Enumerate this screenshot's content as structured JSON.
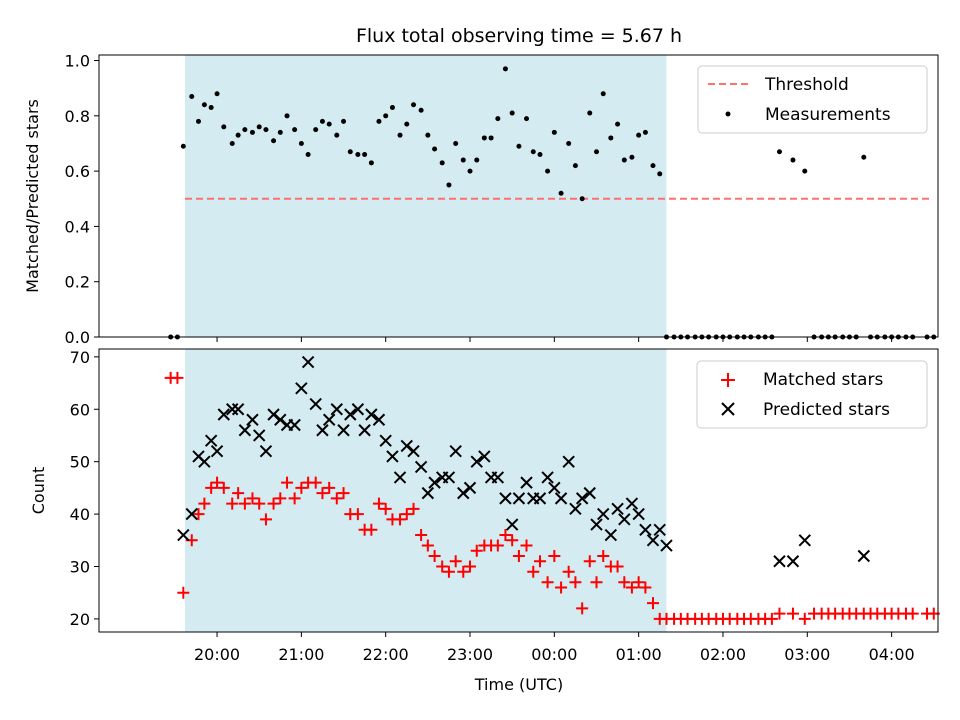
{
  "title": "Flux total observing time = 5.67 h",
  "colors": {
    "shade": "#d4ebf1",
    "threshold": "#ff7070",
    "matched": "#ff0000",
    "predicted": "#000000",
    "measurements": "#000000"
  },
  "chart_data": [
    {
      "type": "scatter",
      "ylabel": "Matched/Predicted stars",
      "xlim_hours": [
        18.6,
        28.55
      ],
      "ylim": [
        0,
        1.02
      ],
      "yticks": [
        "0.0",
        "0.2",
        "0.4",
        "0.6",
        "0.8",
        "1.0"
      ],
      "ytick_values": [
        0,
        0.2,
        0.4,
        0.6,
        0.8,
        1.0
      ],
      "shaded_span_hours": [
        19.62,
        25.33
      ],
      "threshold": {
        "y": 0.5,
        "x_start_hours": 19.62,
        "x_end_hours": 28.45
      },
      "legend": [
        "Threshold",
        "Measurements"
      ],
      "legend_position": "upper right",
      "series": [
        {
          "name": "Measurements",
          "x_hours": [
            19.45,
            19.53,
            19.6,
            19.7,
            19.78,
            19.85,
            19.93,
            20.0,
            20.08,
            20.18,
            20.25,
            20.33,
            20.42,
            20.5,
            20.58,
            20.67,
            20.75,
            20.83,
            20.92,
            21.0,
            21.08,
            21.17,
            21.25,
            21.33,
            21.42,
            21.5,
            21.58,
            21.67,
            21.75,
            21.83,
            21.92,
            22.0,
            22.08,
            22.17,
            22.25,
            22.33,
            22.42,
            22.5,
            22.58,
            22.67,
            22.75,
            22.83,
            22.92,
            23.0,
            23.08,
            23.17,
            23.25,
            23.33,
            23.42,
            23.5,
            23.58,
            23.67,
            23.75,
            23.83,
            23.92,
            24.0,
            24.08,
            24.17,
            24.25,
            24.33,
            24.42,
            24.5,
            24.58,
            24.67,
            24.75,
            24.83,
            24.92,
            25.0,
            25.08,
            25.17,
            25.25,
            25.33,
            25.42,
            25.5,
            25.58,
            25.67,
            25.75,
            25.83,
            25.92,
            26.0,
            26.08,
            26.17,
            26.25,
            26.33,
            26.42,
            26.5,
            26.58,
            26.67,
            26.83,
            26.97,
            27.08,
            27.17,
            27.25,
            27.33,
            27.42,
            27.5,
            27.58,
            27.67,
            27.75,
            27.83,
            27.92,
            28.0,
            28.08,
            28.17,
            28.25,
            28.42,
            28.5
          ],
          "y": [
            0.0,
            0.0,
            0.69,
            0.87,
            0.78,
            0.84,
            0.83,
            0.88,
            0.76,
            0.7,
            0.73,
            0.75,
            0.74,
            0.76,
            0.75,
            0.71,
            0.74,
            0.8,
            0.75,
            0.7,
            0.66,
            0.75,
            0.78,
            0.77,
            0.73,
            0.78,
            0.67,
            0.66,
            0.66,
            0.63,
            0.78,
            0.8,
            0.83,
            0.73,
            0.77,
            0.84,
            0.82,
            0.73,
            0.68,
            0.63,
            0.55,
            0.7,
            0.64,
            0.6,
            0.64,
            0.72,
            0.72,
            0.79,
            0.97,
            0.81,
            0.69,
            0.79,
            0.67,
            0.66,
            0.6,
            0.74,
            0.52,
            0.7,
            0.62,
            0.5,
            0.81,
            0.67,
            0.88,
            0.72,
            0.77,
            0.64,
            0.65,
            0.73,
            0.74,
            0.62,
            0.59,
            0.0,
            0.0,
            0.0,
            0.0,
            0.0,
            0.0,
            0.0,
            0.0,
            0.0,
            0.0,
            0.0,
            0.0,
            0.0,
            0.0,
            0.0,
            0.0,
            0.67,
            0.64,
            0.6,
            0.0,
            0.0,
            0.0,
            0.0,
            0.0,
            0.0,
            0.0,
            0.65,
            0.0,
            0.0,
            0.0,
            0.0,
            0.0,
            0.0,
            0.0,
            0.0,
            0.0
          ]
        }
      ]
    },
    {
      "type": "scatter",
      "xlabel": "Time (UTC)",
      "ylabel": "Count",
      "xlim_hours": [
        18.6,
        28.55
      ],
      "ylim": [
        17.5,
        71.5
      ],
      "yticks": [
        "20",
        "30",
        "40",
        "50",
        "60",
        "70"
      ],
      "ytick_values": [
        20,
        30,
        40,
        50,
        60,
        70
      ],
      "xticks": [
        "20:00",
        "21:00",
        "22:00",
        "23:00",
        "00:00",
        "01:00",
        "02:00",
        "03:00",
        "04:00"
      ],
      "xtick_hours": [
        20,
        21,
        22,
        23,
        24,
        25,
        26,
        27,
        28
      ],
      "shaded_span_hours": [
        19.62,
        25.33
      ],
      "legend": [
        "Matched stars",
        "Predicted stars"
      ],
      "legend_position": "upper right",
      "series": [
        {
          "name": "Matched stars",
          "x_hours": [
            19.45,
            19.53,
            19.6,
            19.7,
            19.78,
            19.85,
            19.93,
            20.0,
            20.08,
            20.18,
            20.25,
            20.33,
            20.42,
            20.5,
            20.58,
            20.67,
            20.75,
            20.83,
            20.92,
            21.0,
            21.08,
            21.17,
            21.25,
            21.33,
            21.42,
            21.5,
            21.58,
            21.67,
            21.75,
            21.83,
            21.92,
            22.0,
            22.08,
            22.17,
            22.25,
            22.33,
            22.42,
            22.5,
            22.58,
            22.67,
            22.75,
            22.83,
            22.92,
            23.0,
            23.08,
            23.17,
            23.25,
            23.33,
            23.42,
            23.5,
            23.58,
            23.67,
            23.75,
            23.83,
            23.92,
            24.0,
            24.08,
            24.17,
            24.25,
            24.33,
            24.42,
            24.5,
            24.58,
            24.67,
            24.75,
            24.83,
            24.92,
            25.0,
            25.08,
            25.17,
            25.25,
            25.33,
            25.42,
            25.5,
            25.58,
            25.67,
            25.75,
            25.83,
            25.92,
            26.0,
            26.08,
            26.17,
            26.25,
            26.33,
            26.42,
            26.5,
            26.58,
            26.67,
            26.83,
            26.97,
            27.08,
            27.17,
            27.25,
            27.33,
            27.42,
            27.5,
            27.58,
            27.67,
            27.75,
            27.83,
            27.92,
            28.0,
            28.08,
            28.17,
            28.25,
            28.42,
            28.5
          ],
          "y": [
            66,
            66,
            25,
            35,
            40,
            42,
            45,
            46,
            45,
            42,
            44,
            42,
            43,
            42,
            39,
            42,
            43,
            46,
            43,
            45,
            46,
            46,
            44,
            45,
            43,
            44,
            40,
            40,
            37,
            37,
            42,
            41,
            39,
            39,
            40,
            41,
            36,
            34,
            32,
            30,
            29,
            31,
            29,
            30,
            33,
            34,
            34,
            34,
            36,
            35,
            32,
            34,
            29,
            31,
            27,
            32,
            26,
            29,
            27,
            22,
            31,
            27,
            32,
            30,
            30,
            27,
            26,
            27,
            26,
            23,
            20,
            20,
            20,
            20,
            20,
            20,
            20,
            20,
            20,
            20,
            20,
            20,
            20,
            20,
            20,
            20,
            20,
            21,
            21,
            20,
            21,
            21,
            21,
            21,
            21,
            21,
            21,
            21,
            21,
            21,
            21,
            21,
            21,
            21,
            21,
            21,
            21
          ]
        },
        {
          "name": "Predicted stars",
          "x_hours": [
            19.6,
            19.7,
            19.78,
            19.85,
            19.93,
            20.0,
            20.08,
            20.18,
            20.25,
            20.33,
            20.42,
            20.5,
            20.58,
            20.67,
            20.75,
            20.83,
            20.92,
            21.0,
            21.08,
            21.17,
            21.25,
            21.33,
            21.42,
            21.5,
            21.58,
            21.67,
            21.75,
            21.83,
            21.92,
            22.0,
            22.08,
            22.17,
            22.25,
            22.33,
            22.42,
            22.5,
            22.58,
            22.67,
            22.75,
            22.83,
            22.92,
            23.0,
            23.08,
            23.17,
            23.25,
            23.33,
            23.42,
            23.5,
            23.58,
            23.67,
            23.75,
            23.83,
            23.92,
            24.0,
            24.08,
            24.17,
            24.25,
            24.33,
            24.42,
            24.5,
            24.58,
            24.67,
            24.75,
            24.83,
            24.92,
            25.0,
            25.08,
            25.17,
            25.25,
            25.33,
            26.67,
            26.83,
            26.97,
            27.67
          ],
          "y": [
            36,
            40,
            51,
            50,
            54,
            52,
            59,
            60,
            60,
            56,
            58,
            55,
            52,
            59,
            58,
            57,
            57,
            64,
            69,
            61,
            56,
            58,
            60,
            56,
            59,
            60,
            56,
            59,
            58,
            54,
            51,
            47,
            53,
            52,
            49,
            44,
            46,
            47,
            47,
            52,
            44,
            45,
            50,
            51,
            47,
            47,
            43,
            38,
            43,
            46,
            43,
            43,
            47,
            45,
            43,
            50,
            41,
            43,
            44,
            38,
            40,
            36,
            41,
            39,
            42,
            40,
            37,
            35,
            37,
            34,
            31,
            31,
            35,
            32
          ]
        }
      ]
    }
  ]
}
